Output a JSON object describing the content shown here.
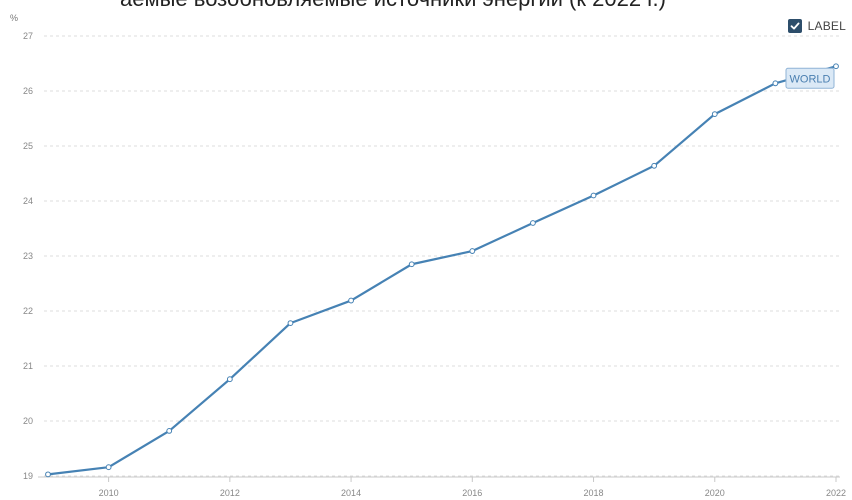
{
  "header": {
    "cut_title": "аемые возобновляемые источники энергии (к 2022 г.)"
  },
  "toggle": {
    "label": "LABEL",
    "checked": true
  },
  "chart_data": {
    "type": "line",
    "title": "",
    "xlabel": "",
    "ylabel": "%",
    "x": [
      2009,
      2010,
      2011,
      2012,
      2013,
      2014,
      2015,
      2016,
      2017,
      2018,
      2019,
      2020,
      2021,
      2022
    ],
    "series": [
      {
        "name": "WORLD",
        "values": [
          19.03,
          19.16,
          19.82,
          20.76,
          21.78,
          22.19,
          22.85,
          23.09,
          23.6,
          24.1,
          24.64,
          25.58,
          26.14,
          26.45
        ],
        "color": "#4682b4"
      }
    ],
    "xticks": [
      "2010",
      "2012",
      "2014",
      "2016",
      "2018",
      "2020",
      "2022"
    ],
    "yticks": [
      "19",
      "20",
      "21",
      "22",
      "23",
      "24",
      "25",
      "26",
      "27"
    ],
    "ylim": [
      19,
      27
    ],
    "xlim": [
      2009,
      2022
    ],
    "grid": true,
    "gridStyle": "dashed"
  }
}
